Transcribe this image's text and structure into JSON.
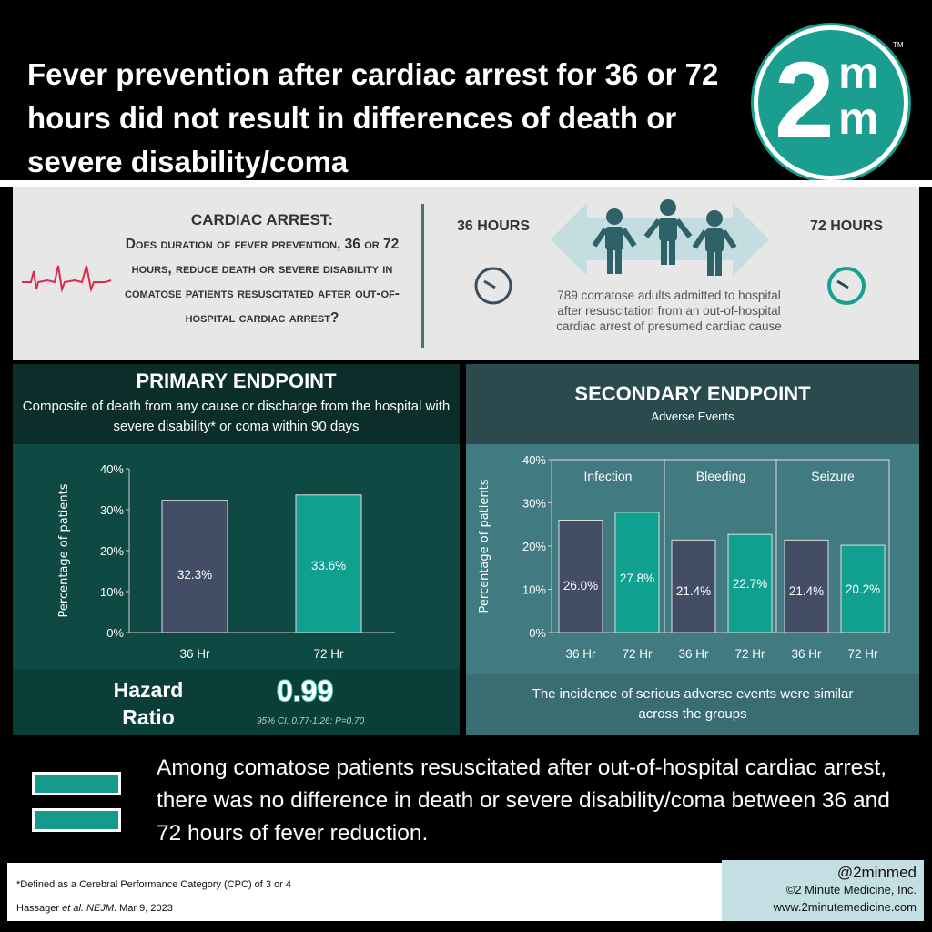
{
  "header": {
    "title": "Fever prevention after cardiac arrest for 36 or 72 hours did not result in differences of death or severe disability/coma",
    "logo_text": "2mm",
    "logo_tm": "TM"
  },
  "question": {
    "heading": "CARDIAC ARREST:",
    "text": "Does duration of fever prevention, 36 or 72 hours, reduce death or severe disability in comatose patients resuscitated after out-of-hospital cardiac arrest?"
  },
  "population": {
    "left_label": "36 HOURS",
    "right_label": "72 HOURS",
    "description": "789 comatose adults admitted to hospital after resuscitation from an out-of-hospital cardiac arrest of presumed cardiac cause"
  },
  "primary": {
    "title": "PRIMARY ENDPOINT",
    "subtitle": "Composite of death from any cause or discharge from the hospital with severe disability* or coma within 90 days",
    "hazard_label_1": "Hazard",
    "hazard_label_2": "Ratio",
    "hazard_value": "0.99",
    "ci": "95% CI, 0.77-1.26; P=0.70"
  },
  "secondary": {
    "title": "SECONDARY ENDPOINT",
    "subtitle": "Adverse Events",
    "footnote": "The incidence of serious adverse events were similar across the groups"
  },
  "conclusion": "Among comatose patients resuscitated after out-of-hospital cardiac arrest, there was no difference in death or severe disability/coma between 36 and 72 hours of fever reduction.",
  "footer": {
    "definition": "*Defined as a Cerebral Performance Category (CPC) of 3 or 4",
    "citation_author": "Hassager ",
    "citation_etal": "et al. NEJM",
    "citation_date": ". Mar 9, 2023",
    "handle": "@2minmed",
    "copyright": "©2 Minute Medicine, Inc.",
    "website": "www.2minutemedicine.com"
  },
  "colors": {
    "arm36": "#434e66",
    "arm72": "#0fa090",
    "accent": "#1a9e8f",
    "ecg": "#e0284a"
  },
  "chart_data": [
    {
      "type": "bar",
      "title": "Primary Endpoint",
      "ylabel": "Percentage of patients",
      "ylim": [
        0,
        40
      ],
      "yticks": [
        "0%",
        "10%",
        "20%",
        "30%",
        "40%"
      ],
      "categories": [
        "36 Hr",
        "72 Hr"
      ],
      "values": [
        32.3,
        33.6
      ],
      "labels": [
        "32.3%",
        "33.6%"
      ]
    },
    {
      "type": "bar",
      "title": "Secondary Endpoint - Adverse Events",
      "ylabel": "Percentage of patients",
      "ylim": [
        0,
        40
      ],
      "yticks": [
        "0%",
        "10%",
        "20%",
        "30%",
        "40%"
      ],
      "groups": [
        "Infection",
        "Bleeding",
        "Seizure"
      ],
      "categories": [
        "36 Hr",
        "72 Hr",
        "36 Hr",
        "72 Hr",
        "36 Hr",
        "72 Hr"
      ],
      "values": [
        26.0,
        27.8,
        21.4,
        22.7,
        21.4,
        20.2
      ],
      "labels": [
        "26.0%",
        "27.8%",
        "21.4%",
        "22.7%",
        "21.4%",
        "20.2%"
      ]
    }
  ]
}
